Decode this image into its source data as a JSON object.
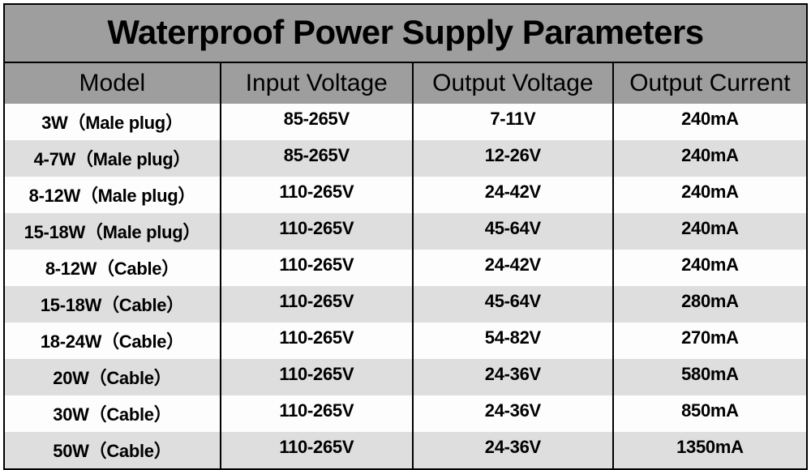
{
  "title": "Waterproof Power Supply Parameters",
  "title_fontsize": 42,
  "title_bg": "#9e9e9e",
  "title_color": "#000000",
  "border_color": "#000000",
  "header_bg": "#9e9e9e",
  "header_color": "#000000",
  "header_fontsize": 30,
  "row_light_bg": "#fdfdfd",
  "row_dark_bg": "#dedede",
  "cell_fontsize": 22,
  "columns": [
    "Model",
    "Input Voltage",
    "Output Voltage",
    "Output Current"
  ],
  "column_widths_pct": [
    27,
    24,
    25,
    24
  ],
  "rows": [
    [
      "3W（Male plug）",
      "85-265V",
      "7-11V",
      "240mA"
    ],
    [
      "4-7W（Male plug）",
      "85-265V",
      "12-26V",
      "240mA"
    ],
    [
      "8-12W（Male plug）",
      "110-265V",
      "24-42V",
      "240mA"
    ],
    [
      "15-18W（Male plug）",
      "110-265V",
      "45-64V",
      "240mA"
    ],
    [
      "8-12W（Cable）",
      "110-265V",
      "24-42V",
      "240mA"
    ],
    [
      "15-18W（Cable）",
      "110-265V",
      "45-64V",
      "280mA"
    ],
    [
      "18-24W（Cable）",
      "110-265V",
      "54-82V",
      "270mA"
    ],
    [
      "20W（Cable）",
      "110-265V",
      "24-36V",
      "580mA"
    ],
    [
      "30W（Cable）",
      "110-265V",
      "24-36V",
      "850mA"
    ],
    [
      "50W（Cable）",
      "110-265V",
      "24-36V",
      "1350mA"
    ]
  ]
}
